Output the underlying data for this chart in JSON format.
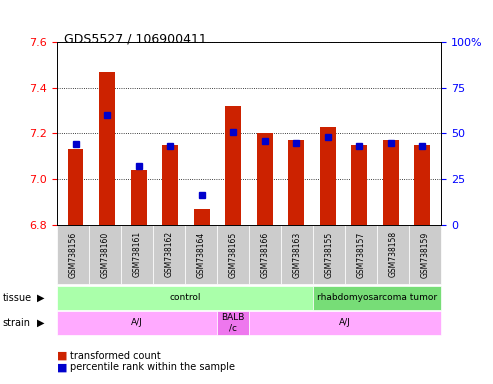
{
  "title": "GDS5527 / 106900411",
  "samples": [
    "GSM738156",
    "GSM738160",
    "GSM738161",
    "GSM738162",
    "GSM738164",
    "GSM738165",
    "GSM738166",
    "GSM738163",
    "GSM738155",
    "GSM738157",
    "GSM738158",
    "GSM738159"
  ],
  "red_values": [
    7.13,
    7.47,
    7.04,
    7.15,
    6.87,
    7.32,
    7.2,
    7.17,
    7.23,
    7.15,
    7.17,
    7.15
  ],
  "blue_values": [
    44,
    60,
    32,
    43,
    16,
    51,
    46,
    45,
    48,
    43,
    45,
    43
  ],
  "ymin": 6.8,
  "ymax": 7.6,
  "y2min": 0,
  "y2max": 100,
  "yticks": [
    6.8,
    7.0,
    7.2,
    7.4,
    7.6
  ],
  "y2ticks": [
    0,
    25,
    50,
    75,
    100
  ],
  "tissue_groups": [
    {
      "label": "control",
      "start": 0,
      "end": 8,
      "color": "#aaffaa"
    },
    {
      "label": "rhabdomyosarcoma tumor",
      "start": 8,
      "end": 12,
      "color": "#77dd77"
    }
  ],
  "strain_groups": [
    {
      "label": "A/J",
      "start": 0,
      "end": 5,
      "color": "#ffaaff"
    },
    {
      "label": "BALB\n/c",
      "start": 5,
      "end": 6,
      "color": "#ee77ee"
    },
    {
      "label": "A/J",
      "start": 6,
      "end": 12,
      "color": "#ffaaff"
    }
  ],
  "bar_color": "#cc2200",
  "dot_color": "#0000cc",
  "plot_bg": "#ffffff",
  "legend_red": "transformed count",
  "legend_blue": "percentile rank within the sample"
}
